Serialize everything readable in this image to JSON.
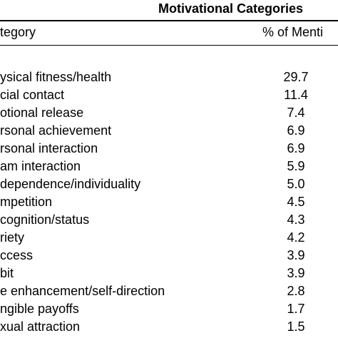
{
  "table": {
    "title": "Motivational Categories",
    "headers": [
      "tegory",
      "% of Menti"
    ],
    "rows": [
      [
        "ysical fitness/health",
        "29.7"
      ],
      [
        "cial contact",
        "11.4"
      ],
      [
        "otional release",
        "7.4"
      ],
      [
        "rsonal achievement",
        "6.9"
      ],
      [
        "rsonal interaction",
        "6.9"
      ],
      [
        "am interaction",
        "5.9"
      ],
      [
        "dependence/individuality",
        "5.0"
      ],
      [
        "mpetition",
        "4.5"
      ],
      [
        "cognition/status",
        "4.3"
      ],
      [
        "riety",
        "4.2"
      ],
      [
        "ccess",
        "3.9"
      ],
      [
        "bit",
        "3.9"
      ],
      [
        "e enhancement/self-direction",
        "2.8"
      ],
      [
        "ngible payoffs",
        "1.7"
      ],
      [
        "xual attraction",
        "1.5"
      ]
    ]
  }
}
